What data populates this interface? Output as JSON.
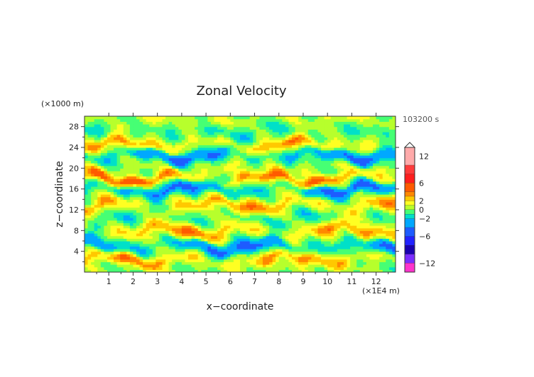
{
  "chart_data": {
    "type": "heatmap",
    "title": "Zonal Velocity",
    "xlabel": "x−coordinate",
    "ylabel": "z−coordinate",
    "x_unit": "(×1E4 m)",
    "y_unit": "(×1000 m)",
    "time_label": "103200 s",
    "xlim": [
      0,
      12.8
    ],
    "ylim": [
      0,
      30
    ],
    "x_ticks": [
      "1",
      "2",
      "3",
      "4",
      "5",
      "6",
      "7",
      "8",
      "9",
      "10",
      "11",
      "12"
    ],
    "y_ticks": [
      "4",
      "8",
      "12",
      "16",
      "20",
      "24",
      "28"
    ],
    "colorbar": {
      "tick_labels": [
        "12",
        "6",
        "2",
        "0",
        "−2",
        "−6",
        "−12"
      ],
      "tick_values": [
        12,
        6,
        2,
        0,
        -2,
        -6,
        -12
      ],
      "levels": [
        {
          "from": 10,
          "to": 14,
          "color": "#ffaaaa"
        },
        {
          "from": 8,
          "to": 10,
          "color": "#ff3b3b"
        },
        {
          "from": 6,
          "to": 8,
          "color": "#ff1e1e"
        },
        {
          "from": 4,
          "to": 6,
          "color": "#ff5a00"
        },
        {
          "from": 3,
          "to": 4,
          "color": "#ff8800"
        },
        {
          "from": 2,
          "to": 3,
          "color": "#ffc800"
        },
        {
          "from": 1,
          "to": 2,
          "color": "#ffff22"
        },
        {
          "from": 0,
          "to": 1,
          "color": "#b7ff2c"
        },
        {
          "from": -1,
          "to": 0,
          "color": "#46ff74"
        },
        {
          "from": -2,
          "to": -1,
          "color": "#00e0c8"
        },
        {
          "from": -4,
          "to": -2,
          "color": "#00a8ff"
        },
        {
          "from": -6,
          "to": -4,
          "color": "#1e5cff"
        },
        {
          "from": -8,
          "to": -6,
          "color": "#2222ff"
        },
        {
          "from": -10,
          "to": -8,
          "color": "#1a00b0"
        },
        {
          "from": -12,
          "to": -10,
          "color": "#7a2cff"
        },
        {
          "from": -14,
          "to": -12,
          "color": "#ff33cc"
        }
      ]
    },
    "bands": [
      {
        "z": 2.5,
        "u": 3,
        "w": 1.2
      },
      {
        "z": 5.0,
        "u": -4,
        "w": 1.2
      },
      {
        "z": 8.0,
        "u": 3,
        "w": 1.3
      },
      {
        "z": 10.5,
        "u": -1,
        "w": 1.2
      },
      {
        "z": 13.0,
        "u": 3,
        "w": 1.3
      },
      {
        "z": 16.0,
        "u": -4,
        "w": 1.1
      },
      {
        "z": 18.0,
        "u": 4,
        "w": 1.0
      },
      {
        "z": 20.0,
        "u": 1,
        "w": 1.0
      },
      {
        "z": 22.5,
        "u": -4,
        "w": 1.1
      },
      {
        "z": 24.5,
        "u": 3,
        "w": 1.1
      },
      {
        "z": 27.0,
        "u": -1,
        "w": 1.3
      },
      {
        "z": 29.5,
        "u": 1,
        "w": 0.9
      }
    ],
    "grid": false
  }
}
